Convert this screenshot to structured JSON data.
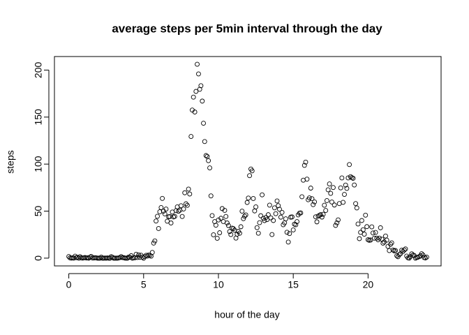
{
  "chart_data": {
    "type": "scatter",
    "title": "average steps per 5min interval through the day",
    "x_label": "hour of the day",
    "y_label": "steps",
    "color": "#000000",
    "xlim": [
      -0.96,
      24.88
    ],
    "ylim": [
      -8.25,
      214.4
    ],
    "xticks": [
      0,
      5,
      10,
      15,
      20
    ],
    "yticks": [
      0,
      50,
      100,
      150,
      200
    ],
    "x": [
      0,
      0.08,
      0.17,
      0.25,
      0.33,
      0.42,
      0.5,
      0.58,
      0.67,
      0.75,
      0.83,
      0.92,
      1,
      1.08,
      1.17,
      1.25,
      1.33,
      1.42,
      1.5,
      1.58,
      1.67,
      1.75,
      1.83,
      1.92,
      2,
      2.08,
      2.17,
      2.25,
      2.33,
      2.42,
      2.5,
      2.58,
      2.67,
      2.75,
      2.83,
      2.92,
      3,
      3.08,
      3.17,
      3.25,
      3.33,
      3.42,
      3.5,
      3.58,
      3.67,
      3.75,
      3.83,
      3.92,
      4,
      4.08,
      4.17,
      4.25,
      4.33,
      4.42,
      4.5,
      4.58,
      4.67,
      4.75,
      4.83,
      4.92,
      5,
      5.08,
      5.17,
      5.25,
      5.33,
      5.42,
      5.5,
      5.58,
      5.67,
      5.75,
      5.83,
      5.92,
      6,
      6.08,
      6.17,
      6.25,
      6.33,
      6.42,
      6.5,
      6.58,
      6.67,
      6.75,
      6.83,
      6.92,
      7,
      7.08,
      7.17,
      7.25,
      7.33,
      7.42,
      7.5,
      7.58,
      7.67,
      7.75,
      7.83,
      7.92,
      8,
      8.08,
      8.17,
      8.25,
      8.33,
      8.42,
      8.5,
      8.58,
      8.67,
      8.75,
      8.83,
      8.92,
      9,
      9.08,
      9.17,
      9.25,
      9.33,
      9.42,
      9.5,
      9.58,
      9.67,
      9.75,
      9.83,
      9.92,
      10,
      10.08,
      10.17,
      10.25,
      10.33,
      10.42,
      10.5,
      10.58,
      10.67,
      10.75,
      10.83,
      10.92,
      11,
      11.08,
      11.17,
      11.25,
      11.33,
      11.42,
      11.5,
      11.58,
      11.67,
      11.75,
      11.83,
      11.92,
      12,
      12.08,
      12.17,
      12.25,
      12.33,
      12.42,
      12.5,
      12.58,
      12.67,
      12.75,
      12.83,
      12.92,
      13,
      13.08,
      13.17,
      13.25,
      13.33,
      13.42,
      13.5,
      13.58,
      13.67,
      13.75,
      13.83,
      13.92,
      14,
      14.08,
      14.17,
      14.25,
      14.33,
      14.42,
      14.5,
      14.58,
      14.67,
      14.75,
      14.83,
      14.92,
      15,
      15.08,
      15.17,
      15.25,
      15.33,
      15.42,
      15.5,
      15.58,
      15.67,
      15.75,
      15.83,
      15.92,
      16,
      16.08,
      16.17,
      16.25,
      16.33,
      16.42,
      16.5,
      16.58,
      16.67,
      16.75,
      16.83,
      16.92,
      17,
      17.08,
      17.17,
      17.25,
      17.33,
      17.42,
      17.5,
      17.58,
      17.67,
      17.75,
      17.83,
      17.92,
      18,
      18.08,
      18.17,
      18.25,
      18.33,
      18.42,
      18.5,
      18.58,
      18.67,
      18.75,
      18.83,
      18.92,
      19,
      19.08,
      19.17,
      19.25,
      19.33,
      19.42,
      19.5,
      19.58,
      19.67,
      19.75,
      19.83,
      19.92,
      20,
      20.08,
      20.17,
      20.25,
      20.33,
      20.42,
      20.5,
      20.58,
      20.67,
      20.75,
      20.83,
      20.92,
      21,
      21.08,
      21.17,
      21.25,
      21.33,
      21.42,
      21.5,
      21.58,
      21.67,
      21.75,
      21.83,
      21.92,
      22,
      22.08,
      22.17,
      22.25,
      22.33,
      22.42,
      22.5,
      22.58,
      22.67,
      22.75,
      22.83,
      22.92,
      23,
      23.08,
      23.17,
      23.25,
      23.33,
      23.42,
      23.5,
      23.58,
      23.67,
      23.75,
      23.83,
      23.92
    ],
    "values": [
      1.7,
      0.3,
      0.1,
      0.2,
      0.1,
      2.1,
      0.5,
      0.9,
      0,
      1.5,
      0.3,
      0.1,
      0.3,
      0.7,
      0.2,
      0.3,
      0,
      1.1,
      1.8,
      0.2,
      0.2,
      0.4,
      0.3,
      0,
      0,
      0,
      1.1,
      0,
      0,
      0.1,
      0,
      0.2,
      0,
      0,
      1.5,
      0.9,
      0,
      0,
      0,
      0,
      0.2,
      0.6,
      1.6,
      0.6,
      0.5,
      0.1,
      0,
      0,
      1.2,
      0.9,
      2.6,
      0,
      0.3,
      0.4,
      4.1,
      0.7,
      3.5,
      0.8,
      3.1,
      1.1,
      0,
      1.6,
      3,
      2.2,
      3.3,
      3,
      2.1,
      6.1,
      16,
      18.3,
      39.5,
      44.5,
      31.5,
      49.3,
      53.8,
      63.5,
      50,
      47.1,
      52.2,
      39.3,
      44,
      44.2,
      37.4,
      49,
      43.8,
      44.4,
      50.5,
      54.5,
      49.9,
      51,
      55.7,
      44.3,
      52.3,
      69.5,
      57.8,
      56.2,
      73.4,
      68.2,
      129.4,
      157.5,
      171.2,
      155.4,
      177.3,
      206.2,
      195.9,
      179.6,
      183.4,
      167,
      143.5,
      124,
      109.1,
      108.1,
      103.7,
      96,
      66.2,
      45.2,
      24.8,
      38.8,
      35,
      21.1,
      40.6,
      27,
      42.4,
      52.7,
      38.9,
      50.8,
      44.3,
      37.4,
      34.7,
      28.3,
      25.1,
      31.9,
      31.4,
      29.7,
      21.3,
      25.5,
      28.4,
      26.5,
      33.4,
      50,
      42,
      44.6,
      46,
      59.2,
      63.9,
      87.7,
      94.8,
      92.8,
      63.4,
      50.2,
      54.5,
      32.4,
      26.5,
      37.7,
      45.1,
      67.3,
      42.3,
      39.9,
      43.3,
      41,
      46.2,
      56.4,
      42.8,
      25.1,
      40,
      53.5,
      47.3,
      60.8,
      55.8,
      52,
      43.6,
      48.7,
      35.5,
      37.5,
      41.8,
      27.5,
      17.1,
      26.1,
      43.6,
      43.8,
      30,
      36.1,
      35.5,
      38.8,
      46,
      47.8,
      48.1,
      65.3,
      82.9,
      98.7,
      102.1,
      84,
      62.1,
      64.1,
      74.5,
      63.2,
      56.9,
      59.8,
      43.9,
      38.6,
      44.7,
      45.5,
      46.2,
      43.7,
      46.6,
      56.3,
      50.7,
      61.2,
      72.7,
      78.9,
      68.9,
      59.7,
      75.1,
      56.5,
      34.8,
      37.5,
      40.7,
      58,
      74.7,
      85.3,
      59.3,
      67.8,
      77.7,
      74.2,
      85.3,
      99.5,
      86.6,
      85.6,
      84.9,
      77.8,
      58,
      53.4,
      36.3,
      20.7,
      27.4,
      40,
      30.2,
      25.5,
      45.7,
      33.5,
      19.6,
      19,
      19.3,
      33.3,
      26.8,
      21.2,
      27.3,
      21.3,
      19.5,
      21.3,
      32.3,
      20.2,
      15.9,
      17.2,
      23.5,
      19.2,
      12.5,
      8,
      14.7,
      16.3,
      8.7,
      7.8,
      8.1,
      2.6,
      1.5,
      3.7,
      4.8,
      8.5,
      7.1,
      8.7,
      9.8,
      2.2,
      0.3,
      0.1,
      1.6,
      4.6,
      3.3,
      2.8,
      0,
      0.8,
      1,
      1.6,
      2.6,
      4.7,
      3.3,
      0.6,
      0.2,
      1.1
    ]
  }
}
